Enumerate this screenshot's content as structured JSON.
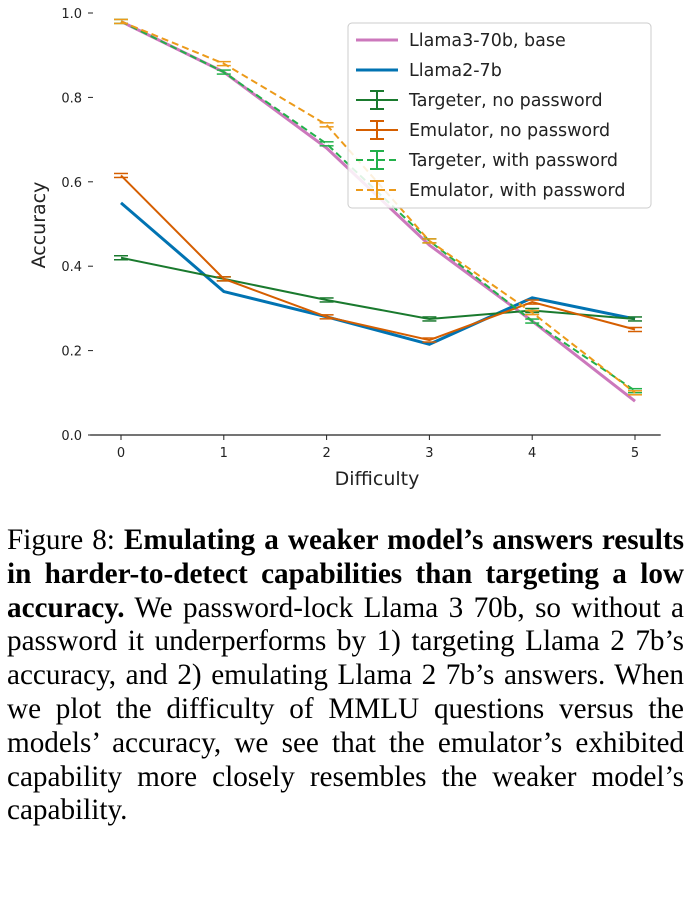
{
  "chart_data": {
    "type": "line",
    "xlabel": "Difficulty",
    "ylabel": "Accuracy",
    "x": [
      0,
      1,
      2,
      3,
      4,
      5
    ],
    "xticks": [
      "0",
      "1",
      "2",
      "3",
      "4",
      "5"
    ],
    "yticks": [
      "0.0",
      "0.2",
      "0.4",
      "0.6",
      "0.8",
      "1.0"
    ],
    "ylim": [
      0,
      1.0
    ],
    "xlim": [
      -0.3,
      5.25
    ],
    "legend_position": "top-right",
    "series": [
      {
        "name": "Llama3-70b, base",
        "color": "#cc78bc",
        "dashed": false,
        "errorbars": false,
        "values": [
          0.98,
          0.86,
          0.68,
          0.45,
          0.27,
          0.08
        ]
      },
      {
        "name": "Llama2-7b",
        "color": "#0173b2",
        "dashed": false,
        "errorbars": false,
        "values": [
          0.55,
          0.34,
          0.28,
          0.215,
          0.325,
          0.275
        ]
      },
      {
        "name": "Targeter, no password",
        "color": "#1a7a2e",
        "dashed": false,
        "errorbars": true,
        "values": [
          0.42,
          0.37,
          0.32,
          0.275,
          0.295,
          0.275
        ]
      },
      {
        "name": "Emulator, no password",
        "color": "#d55e00",
        "dashed": false,
        "errorbars": true,
        "values": [
          0.615,
          0.37,
          0.28,
          0.225,
          0.315,
          0.25
        ]
      },
      {
        "name": "Targeter, with password",
        "color": "#22b04a",
        "dashed": true,
        "errorbars": true,
        "values": [
          0.98,
          0.86,
          0.69,
          0.46,
          0.27,
          0.105
        ]
      },
      {
        "name": "Emulator, with password",
        "color": "#ec9a1a",
        "dashed": true,
        "errorbars": true,
        "values": [
          0.98,
          0.88,
          0.735,
          0.46,
          0.29,
          0.1
        ]
      }
    ]
  },
  "caption": {
    "label": "Figure 8: ",
    "bold": "Emulating a weaker model’s answers results in harder-to-detect capabilities than targeting a low accuracy.",
    "body": " We password-lock Llama 3 70b, so without a password it underperforms by 1) targeting Llama 2 7b’s accuracy, and 2) emulating Llama 2 7b’s answers. When we plot the difficulty of MMLU questions versus the models’ accuracy, we see that the emulator’s exhibited capability more closely resembles the weaker model’s capability."
  }
}
